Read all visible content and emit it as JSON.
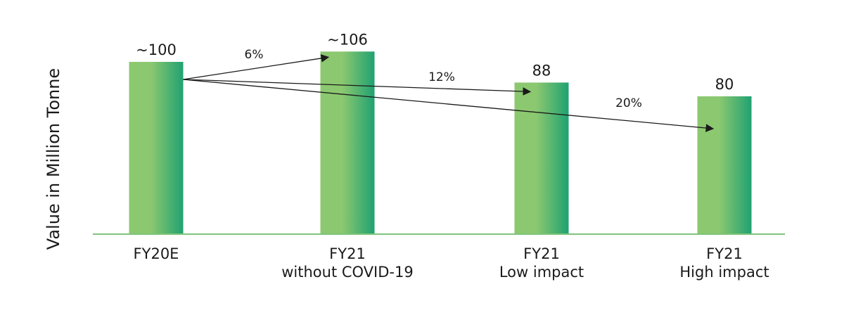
{
  "chart_data": {
    "type": "bar",
    "title": "",
    "xlabel": "",
    "ylabel": "Value in Million Tonne",
    "ylim": [
      0,
      128
    ],
    "grid": false,
    "legend": "none",
    "categories": [
      [
        "FY20E"
      ],
      [
        "FY21",
        "without COVID-19"
      ],
      [
        "FY21",
        "Low impact"
      ],
      [
        "FY21",
        "High impact"
      ]
    ],
    "values": [
      100,
      106,
      88,
      80
    ],
    "value_labels": [
      "~100",
      "~106",
      "88",
      "80"
    ],
    "changes": [
      {
        "from": 0,
        "to": 1,
        "label": "6%"
      },
      {
        "from": 0,
        "to": 2,
        "label": "12%"
      },
      {
        "from": 0,
        "to": 3,
        "label": "20%"
      }
    ],
    "colors": {
      "bar_left": "#8cc870",
      "bar_right": "#1fa271",
      "axis": "#7dc47a",
      "arrow": "#1a1a1a"
    }
  }
}
